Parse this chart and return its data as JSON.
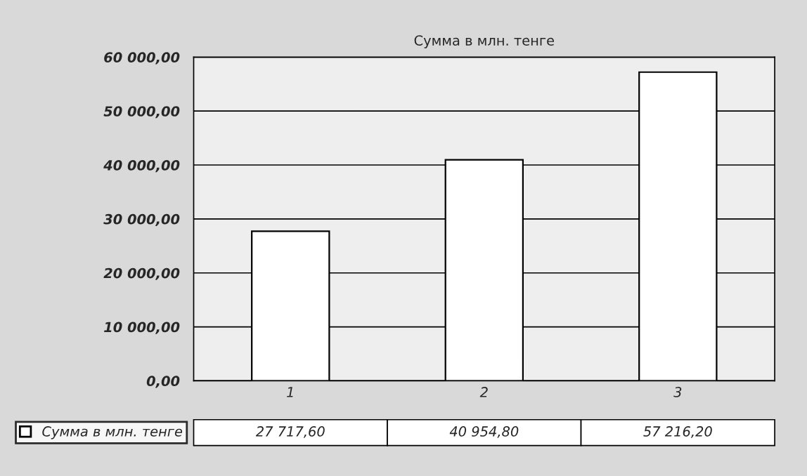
{
  "chart_data": {
    "type": "bar",
    "title": "Сумма в млн. тенге",
    "categories": [
      "1",
      "2",
      "3"
    ],
    "series": [
      {
        "name": "Сумма в млн. тенге",
        "color": "#ffffff",
        "values": [
          27717.6,
          40954.8,
          57216.2
        ],
        "value_labels": [
          "27 717,60",
          "40 954,80",
          "57 216,20"
        ]
      }
    ],
    "ylim": [
      0,
      60000
    ],
    "yticks": [
      {
        "value": 0,
        "label": "0,00"
      },
      {
        "value": 10000,
        "label": "10 000,00"
      },
      {
        "value": 20000,
        "label": "20 000,00"
      },
      {
        "value": 30000,
        "label": "30 000,00"
      },
      {
        "value": 40000,
        "label": "40 000,00"
      },
      {
        "value": 50000,
        "label": "50 000,00"
      },
      {
        "value": 60000,
        "label": "60 000,00"
      }
    ],
    "grid": "y",
    "legend": "bottom left"
  }
}
